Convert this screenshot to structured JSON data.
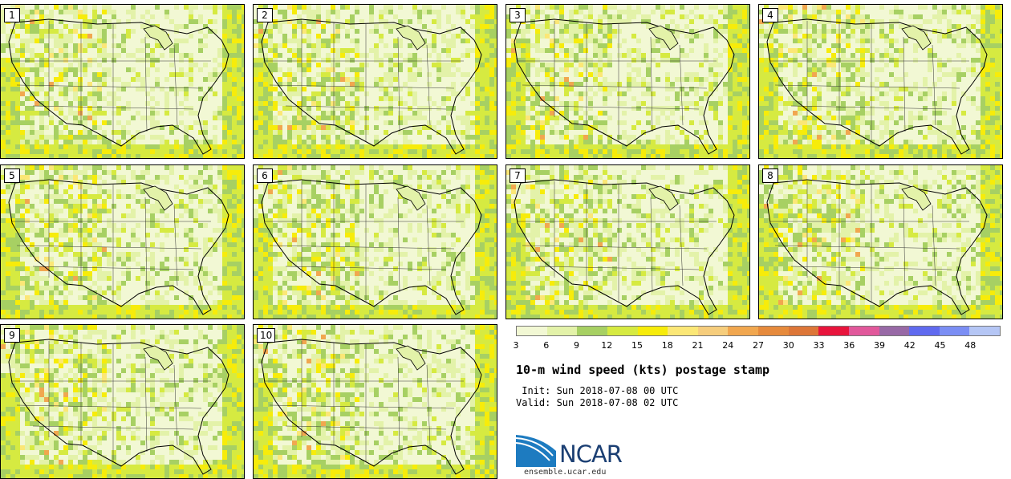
{
  "panels": [
    {
      "label": "1"
    },
    {
      "label": "2"
    },
    {
      "label": "3"
    },
    {
      "label": "4"
    },
    {
      "label": "5"
    },
    {
      "label": "6"
    },
    {
      "label": "7"
    },
    {
      "label": "8"
    },
    {
      "label": "9"
    },
    {
      "label": "10"
    }
  ],
  "colorbar": {
    "colors": [
      "#f2f8d4",
      "#e3f2a9",
      "#a7d063",
      "#d6ea41",
      "#f7ec0a",
      "#fbe776",
      "#f6cd7c",
      "#f1a74f",
      "#e68a3c",
      "#dd7638",
      "#e8143c",
      "#e1589b",
      "#9869a6",
      "#606aef",
      "#7b8ef4",
      "#b5c6f5"
    ],
    "ticks": [
      "3",
      "6",
      "9",
      "12",
      "15",
      "18",
      "21",
      "24",
      "27",
      "30",
      "33",
      "36",
      "39",
      "42",
      "45",
      "48"
    ]
  },
  "title": "10-m wind speed (kts) postage stamp",
  "init": " Init: Sun 2018-07-08 00 UTC",
  "valid": "Valid: Sun 2018-07-08 02 UTC",
  "logo": {
    "name": "ncar-logo-icon",
    "text": "NCAR"
  },
  "website": "ensemble.ucar.edu"
}
